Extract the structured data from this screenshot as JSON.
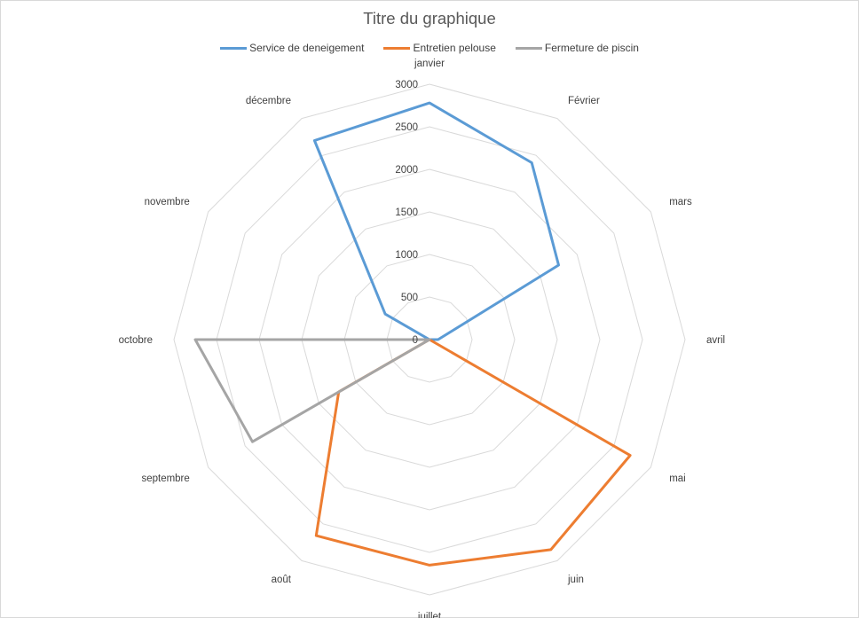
{
  "chart_data": {
    "type": "radar",
    "title": "Titre du graphique",
    "categories": [
      "janvier",
      "Février",
      "mars",
      "avril",
      "mai",
      "juin",
      "juillet",
      "août",
      "septembre",
      "octobre",
      "novembre",
      "décembre"
    ],
    "radial_ticks": [
      "0",
      "500",
      "1000",
      "1500",
      "2000",
      "2500",
      "3000"
    ],
    "rmax": 3000,
    "grid": true,
    "legend_position": "top",
    "series": [
      {
        "name": "Service de deneigement",
        "color": "#5b9bd5",
        "values": [
          2780,
          2400,
          1750,
          100,
          0,
          0,
          0,
          0,
          0,
          0,
          600,
          2700
        ]
      },
      {
        "name": "Entretien pelouse",
        "color": "#ed7d31",
        "values": [
          0,
          0,
          0,
          0,
          2720,
          2850,
          2650,
          2660,
          1230,
          0,
          0,
          0
        ]
      },
      {
        "name": "Fermeture de piscin",
        "color": "#a5a5a5",
        "values": [
          0,
          0,
          0,
          0,
          0,
          0,
          0,
          0,
          2400,
          2750,
          0,
          0
        ]
      }
    ]
  }
}
